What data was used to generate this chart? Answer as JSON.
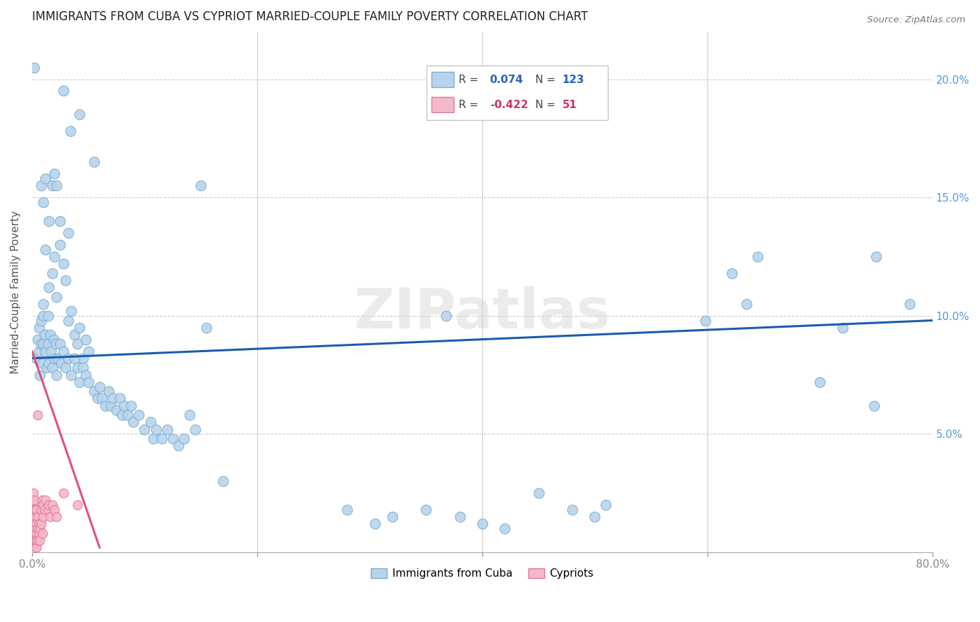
{
  "title": "IMMIGRANTS FROM CUBA VS CYPRIOT MARRIED-COUPLE FAMILY POVERTY CORRELATION CHART",
  "source": "Source: ZipAtlas.com",
  "ylabel_text": "Married-Couple Family Poverty",
  "xmin": 0.0,
  "xmax": 0.8,
  "ymin": 0.0,
  "ymax": 0.22,
  "blue_color": "#b8d4ed",
  "blue_edge": "#7aaece",
  "pink_color": "#f5b8c8",
  "pink_edge": "#e07898",
  "blue_line_color": "#1a5cb0",
  "pink_line_color": "#e0507a",
  "watermark": "ZIPatlas",
  "blue_scatter": [
    [
      0.002,
      0.205
    ],
    [
      0.028,
      0.195
    ],
    [
      0.034,
      0.178
    ],
    [
      0.042,
      0.185
    ],
    [
      0.055,
      0.165
    ],
    [
      0.008,
      0.155
    ],
    [
      0.01,
      0.148
    ],
    [
      0.012,
      0.158
    ],
    [
      0.012,
      0.128
    ],
    [
      0.015,
      0.14
    ],
    [
      0.018,
      0.155
    ],
    [
      0.02,
      0.16
    ],
    [
      0.022,
      0.155
    ],
    [
      0.025,
      0.14
    ],
    [
      0.032,
      0.135
    ],
    [
      0.006,
      0.095
    ],
    [
      0.008,
      0.098
    ],
    [
      0.01,
      0.1
    ],
    [
      0.01,
      0.105
    ],
    [
      0.012,
      0.092
    ],
    [
      0.014,
      0.1
    ],
    [
      0.015,
      0.112
    ],
    [
      0.018,
      0.118
    ],
    [
      0.02,
      0.125
    ],
    [
      0.022,
      0.108
    ],
    [
      0.025,
      0.13
    ],
    [
      0.028,
      0.122
    ],
    [
      0.03,
      0.115
    ],
    [
      0.032,
      0.098
    ],
    [
      0.035,
      0.102
    ],
    [
      0.038,
      0.092
    ],
    [
      0.04,
      0.088
    ],
    [
      0.042,
      0.095
    ],
    [
      0.045,
      0.082
    ],
    [
      0.048,
      0.09
    ],
    [
      0.05,
      0.085
    ],
    [
      0.004,
      0.082
    ],
    [
      0.005,
      0.09
    ],
    [
      0.006,
      0.085
    ],
    [
      0.007,
      0.075
    ],
    [
      0.008,
      0.088
    ],
    [
      0.009,
      0.08
    ],
    [
      0.01,
      0.088
    ],
    [
      0.011,
      0.092
    ],
    [
      0.012,
      0.085
    ],
    [
      0.013,
      0.078
    ],
    [
      0.014,
      0.088
    ],
    [
      0.015,
      0.08
    ],
    [
      0.016,
      0.092
    ],
    [
      0.017,
      0.085
    ],
    [
      0.018,
      0.078
    ],
    [
      0.019,
      0.09
    ],
    [
      0.02,
      0.082
    ],
    [
      0.021,
      0.088
    ],
    [
      0.022,
      0.075
    ],
    [
      0.023,
      0.082
    ],
    [
      0.025,
      0.088
    ],
    [
      0.026,
      0.08
    ],
    [
      0.028,
      0.085
    ],
    [
      0.03,
      0.078
    ],
    [
      0.032,
      0.082
    ],
    [
      0.035,
      0.075
    ],
    [
      0.038,
      0.082
    ],
    [
      0.04,
      0.078
    ],
    [
      0.042,
      0.072
    ],
    [
      0.045,
      0.078
    ],
    [
      0.048,
      0.075
    ],
    [
      0.05,
      0.072
    ],
    [
      0.055,
      0.068
    ],
    [
      0.058,
      0.065
    ],
    [
      0.06,
      0.07
    ],
    [
      0.062,
      0.065
    ],
    [
      0.065,
      0.062
    ],
    [
      0.068,
      0.068
    ],
    [
      0.07,
      0.062
    ],
    [
      0.072,
      0.065
    ],
    [
      0.075,
      0.06
    ],
    [
      0.078,
      0.065
    ],
    [
      0.08,
      0.058
    ],
    [
      0.082,
      0.062
    ],
    [
      0.085,
      0.058
    ],
    [
      0.088,
      0.062
    ],
    [
      0.09,
      0.055
    ],
    [
      0.095,
      0.058
    ],
    [
      0.1,
      0.052
    ],
    [
      0.105,
      0.055
    ],
    [
      0.108,
      0.048
    ],
    [
      0.11,
      0.052
    ],
    [
      0.115,
      0.048
    ],
    [
      0.12,
      0.052
    ],
    [
      0.125,
      0.048
    ],
    [
      0.13,
      0.045
    ],
    [
      0.135,
      0.048
    ],
    [
      0.14,
      0.058
    ],
    [
      0.145,
      0.052
    ],
    [
      0.15,
      0.155
    ],
    [
      0.155,
      0.095
    ],
    [
      0.17,
      0.03
    ],
    [
      0.28,
      0.018
    ],
    [
      0.305,
      0.012
    ],
    [
      0.32,
      0.015
    ],
    [
      0.35,
      0.018
    ],
    [
      0.38,
      0.015
    ],
    [
      0.4,
      0.012
    ],
    [
      0.42,
      0.01
    ],
    [
      0.45,
      0.025
    ],
    [
      0.48,
      0.018
    ],
    [
      0.5,
      0.015
    ],
    [
      0.51,
      0.02
    ],
    [
      0.368,
      0.1
    ],
    [
      0.598,
      0.098
    ],
    [
      0.622,
      0.118
    ],
    [
      0.635,
      0.105
    ],
    [
      0.645,
      0.125
    ],
    [
      0.7,
      0.072
    ],
    [
      0.72,
      0.095
    ],
    [
      0.748,
      0.062
    ],
    [
      0.78,
      0.105
    ],
    [
      0.75,
      0.125
    ]
  ],
  "pink_scatter": [
    [
      0.0,
      0.022
    ],
    [
      0.0,
      0.018
    ],
    [
      0.0,
      0.015
    ],
    [
      0.001,
      0.025
    ],
    [
      0.001,
      0.02
    ],
    [
      0.001,
      0.018
    ],
    [
      0.001,
      0.015
    ],
    [
      0.001,
      0.012
    ],
    [
      0.001,
      0.01
    ],
    [
      0.001,
      0.008
    ],
    [
      0.002,
      0.022
    ],
    [
      0.002,
      0.018
    ],
    [
      0.002,
      0.015
    ],
    [
      0.002,
      0.012
    ],
    [
      0.002,
      0.008
    ],
    [
      0.002,
      0.005
    ],
    [
      0.003,
      0.018
    ],
    [
      0.003,
      0.015
    ],
    [
      0.003,
      0.01
    ],
    [
      0.003,
      0.008
    ],
    [
      0.003,
      0.005
    ],
    [
      0.003,
      0.002
    ],
    [
      0.004,
      0.018
    ],
    [
      0.004,
      0.012
    ],
    [
      0.004,
      0.008
    ],
    [
      0.004,
      0.005
    ],
    [
      0.004,
      0.002
    ],
    [
      0.005,
      0.058
    ],
    [
      0.005,
      0.015
    ],
    [
      0.005,
      0.01
    ],
    [
      0.005,
      0.005
    ],
    [
      0.006,
      0.012
    ],
    [
      0.006,
      0.008
    ],
    [
      0.007,
      0.01
    ],
    [
      0.007,
      0.005
    ],
    [
      0.008,
      0.018
    ],
    [
      0.008,
      0.012
    ],
    [
      0.009,
      0.022
    ],
    [
      0.009,
      0.008
    ],
    [
      0.01,
      0.02
    ],
    [
      0.01,
      0.015
    ],
    [
      0.011,
      0.018
    ],
    [
      0.012,
      0.022
    ],
    [
      0.014,
      0.018
    ],
    [
      0.015,
      0.02
    ],
    [
      0.016,
      0.015
    ],
    [
      0.018,
      0.02
    ],
    [
      0.02,
      0.018
    ],
    [
      0.022,
      0.015
    ],
    [
      0.028,
      0.025
    ],
    [
      0.04,
      0.02
    ]
  ],
  "blue_trend_x": [
    0.0,
    0.8
  ],
  "blue_trend_y": [
    0.082,
    0.098
  ],
  "pink_trend_x": [
    0.0,
    0.06
  ],
  "pink_trend_y": [
    0.085,
    0.002
  ]
}
